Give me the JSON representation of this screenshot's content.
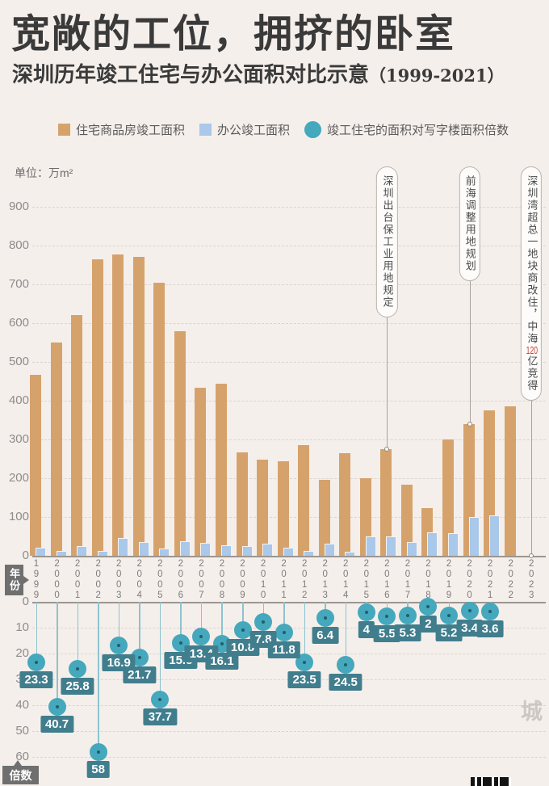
{
  "header": {
    "title": "宽敞的工位，拥挤的卧室",
    "subtitle": "深圳历年竣工住宅与办公面积对比示意",
    "subtitle_years": "（1999-2021）"
  },
  "legend": {
    "housing": "住宅商品房竣工面积",
    "office": "办公竣工面积",
    "ratio": "竣工住宅的面积对写字楼面积倍数"
  },
  "chart": {
    "unit_label": "单位：万m²",
    "year_axis_label": "年份",
    "ratio_axis_label": "倍数"
  },
  "colors": {
    "background": "#f5efeb",
    "housing_bar": "#d6a26c",
    "office_bar": "#a9c8ea",
    "ratio_dot": "#45a8bc",
    "value_badge": "#417e8d",
    "axis_badge": "#6f6f6f",
    "highlight_red": "#cf392f"
  },
  "chart_data": {
    "type": "bar",
    "title": "深圳历年竣工住宅与办公面积对比示意（1999-2021）",
    "xlabel": "年份",
    "ylabel": "单位：万m²",
    "ylim": [
      0,
      900
    ],
    "y_ticks": [
      0,
      100,
      200,
      300,
      400,
      500,
      600,
      700,
      800,
      900
    ],
    "ratio_ylim": [
      0,
      60
    ],
    "ratio_ticks": [
      10,
      20,
      30,
      40,
      50,
      60
    ],
    "grid": "dashed",
    "legend_position": "top",
    "categories": [
      "1999",
      "2000",
      "2001",
      "2002",
      "2003",
      "2004",
      "2005",
      "2006",
      "2007",
      "2008",
      "2009",
      "2010",
      "2011",
      "2012",
      "2013",
      "2014",
      "2015",
      "2016",
      "2017",
      "2018",
      "2019",
      "2020",
      "2021",
      "2022",
      "2023"
    ],
    "series": [
      {
        "name": "住宅商品房竣工面积",
        "color": "#d6a26c",
        "values": [
          467,
          551,
          621,
          764,
          778,
          771,
          704,
          580,
          434,
          443,
          266,
          247,
          243,
          286,
          196,
          265,
          200,
          275,
          184,
          122,
          300,
          340,
          375,
          385,
          null
        ]
      },
      {
        "name": "办公竣工面积",
        "color": "#a9c8ea",
        "values": [
          20,
          13.5,
          24,
          13.2,
          46,
          35.5,
          18.7,
          36.7,
          32.4,
          27.5,
          24.6,
          31.7,
          20.6,
          12.2,
          30.6,
          10.8,
          50,
          50,
          34.7,
          61,
          57.7,
          100,
          104,
          null,
          null
        ]
      },
      {
        "name": "竣工住宅的面积对写字楼面积倍数",
        "color": "#45a8bc",
        "values": [
          23.3,
          40.7,
          25.8,
          58,
          16.9,
          21.7,
          37.7,
          15.8,
          13.4,
          16.1,
          10.8,
          7.8,
          11.8,
          23.5,
          6.4,
          24.5,
          4,
          5.5,
          5.3,
          2,
          5.2,
          3.4,
          3.6,
          null,
          null
        ]
      }
    ]
  },
  "annotations": [
    {
      "text": "深圳出台保工业用地规定",
      "year": "2016",
      "target": "housing-bar"
    },
    {
      "text": "前海调整用地规划",
      "year": "2020",
      "target": "housing-bar"
    },
    {
      "text_before": "深圳湾超总一地块商改住，中海",
      "highlight": "120",
      "text_after": "亿竞得",
      "year": "2023",
      "target": "axis"
    }
  ],
  "watermark": "未来城"
}
